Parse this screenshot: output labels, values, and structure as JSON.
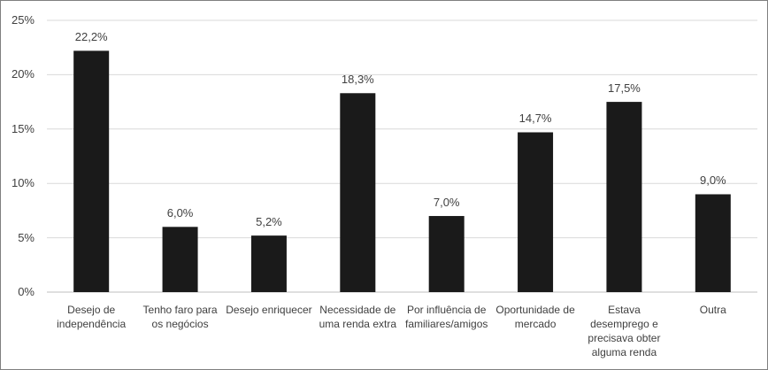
{
  "chart_data": {
    "type": "bar",
    "categories": [
      "Desejo de independência",
      "Tenho faro para os negócios",
      "Desejo enriquecer",
      "Necessidade de uma renda extra",
      "Por influência de familiares/amigos",
      "Oportunidade de mercado",
      "Estava desemprego e precisava obter alguma renda",
      "Outra"
    ],
    "values": [
      22.2,
      6.0,
      5.2,
      18.3,
      7.0,
      14.7,
      17.5,
      9.0
    ],
    "data_labels": [
      "22,2%",
      "6,0%",
      "5,2%",
      "18,3%",
      "7,0%",
      "14,7%",
      "17,5%",
      "9,0%"
    ],
    "yticks": [
      0,
      5,
      10,
      15,
      20,
      25
    ],
    "ytick_labels": [
      "0%",
      "5%",
      "10%",
      "15%",
      "20%",
      "25%"
    ],
    "ylim": [
      0,
      25
    ],
    "grid": true,
    "bar_color": "#1a1a1a",
    "grid_color": "#d9d9d9"
  }
}
